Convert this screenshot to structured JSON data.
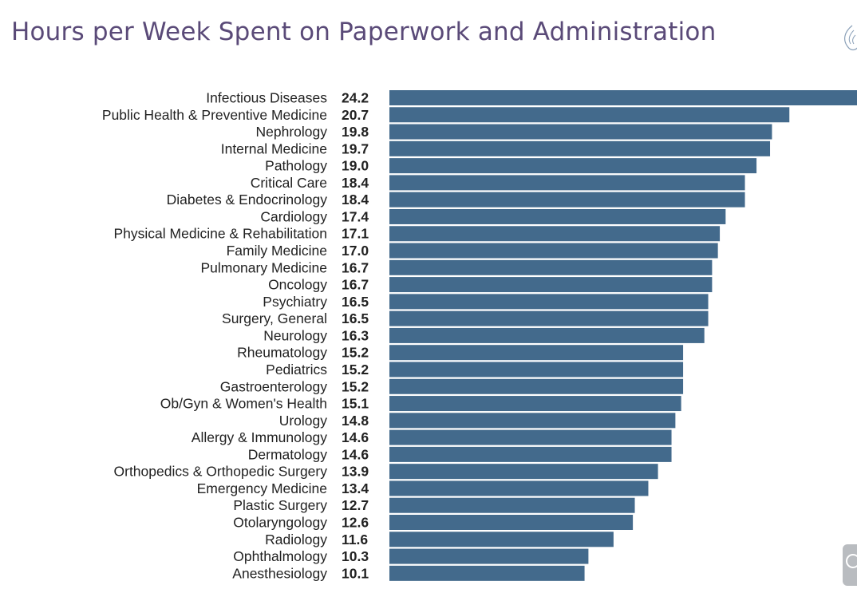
{
  "chart_data": {
    "type": "bar",
    "orientation": "horizontal",
    "title": "Hours per Week Spent on Paperwork and Administration",
    "xlabel": "",
    "ylabel": "",
    "xlim": [
      0,
      24.2
    ],
    "grid": false,
    "legend": "none",
    "bar_color": "#436a8c",
    "categories": [
      "Infectious Diseases",
      "Public Health & Preventive Medicine",
      "Nephrology",
      "Internal Medicine",
      "Pathology",
      "Critical Care",
      "Diabetes & Endocrinology",
      "Cardiology",
      "Physical Medicine & Rehabilitation",
      "Family Medicine",
      "Pulmonary Medicine",
      "Oncology",
      "Psychiatry",
      "Surgery, General",
      "Neurology",
      "Rheumatology",
      "Pediatrics",
      "Gastroenterology",
      "Ob/Gyn & Women's Health",
      "Urology",
      "Allergy & Immunology",
      "Dermatology",
      "Orthopedics & Orthopedic Surgery",
      "Emergency Medicine",
      "Plastic Surgery",
      "Otolaryngology",
      "Radiology",
      "Ophthalmology",
      "Anesthesiology"
    ],
    "values": [
      24.2,
      20.7,
      19.8,
      19.7,
      19.0,
      18.4,
      18.4,
      17.4,
      17.1,
      17.0,
      16.7,
      16.7,
      16.5,
      16.5,
      16.3,
      15.2,
      15.2,
      15.2,
      15.1,
      14.8,
      14.6,
      14.6,
      13.9,
      13.4,
      12.7,
      12.6,
      11.6,
      10.3,
      10.1
    ],
    "value_labels": [
      "24.2",
      "20.7",
      "19.8",
      "19.7",
      "19.0",
      "18.4",
      "18.4",
      "17.4",
      "17.1",
      "17.0",
      "16.7",
      "16.7",
      "16.5",
      "16.5",
      "16.3",
      "15.2",
      "15.2",
      "15.2",
      "15.1",
      "14.8",
      "14.6",
      "14.6",
      "13.9",
      "13.4",
      "12.7",
      "12.6",
      "11.6",
      "10.3",
      "10.1"
    ]
  },
  "colors": {
    "title": "#5a4a78",
    "bar": "#436a8c",
    "text": "#222222"
  },
  "icons": {
    "logo": "logo-mark-icon",
    "corner": "circle-button-icon"
  }
}
